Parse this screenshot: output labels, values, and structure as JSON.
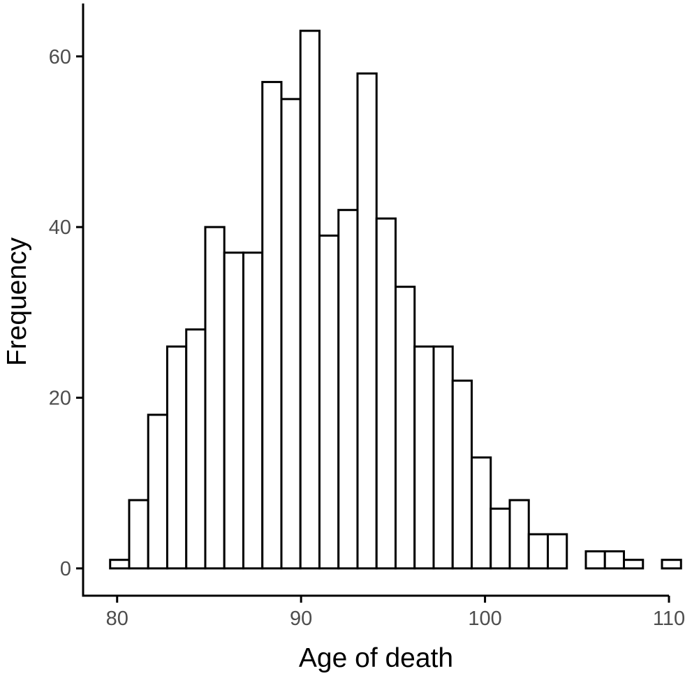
{
  "chart_data": {
    "type": "bar",
    "title": "",
    "xlabel": "Age of death",
    "ylabel": "Frequency",
    "bin_width": 1.0345,
    "bin_start": 79.62,
    "counts": [
      1,
      8,
      18,
      26,
      28,
      40,
      37,
      37,
      57,
      55,
      63,
      39,
      42,
      58,
      41,
      33,
      26,
      26,
      22,
      13,
      7,
      8,
      4,
      4,
      0,
      2,
      2,
      1,
      0,
      1
    ],
    "xlim": [
      78.15,
      110
    ],
    "ylim": [
      -3.2,
      66.2
    ],
    "x_ticks": [
      80,
      90,
      100,
      110
    ],
    "y_ticks": [
      0,
      20,
      40,
      60
    ],
    "grid": false,
    "legend": "none",
    "bar_fill": "#ffffff",
    "bar_stroke": "#000000"
  }
}
